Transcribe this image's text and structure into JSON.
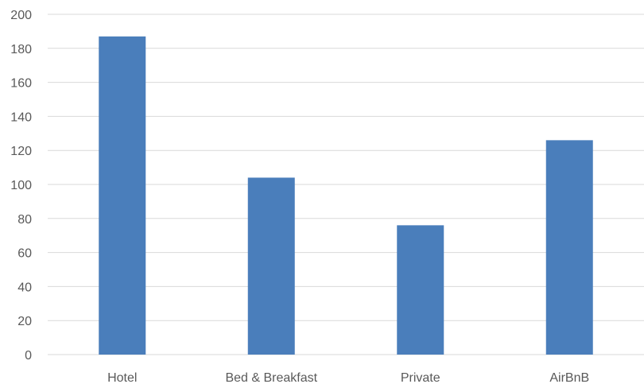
{
  "chart_data": {
    "type": "bar",
    "title": "",
    "xlabel": "",
    "ylabel": "",
    "categories": [
      "Hotel",
      "Bed & Breakfast",
      "Private",
      "AirBnB"
    ],
    "values": [
      187,
      104,
      76,
      126
    ],
    "ylim": [
      0,
      200
    ],
    "yticks": [
      0,
      20,
      40,
      60,
      80,
      100,
      120,
      140,
      160,
      180,
      200
    ],
    "grid": true,
    "legend": "none",
    "bar_color": "#4a7ebb"
  }
}
